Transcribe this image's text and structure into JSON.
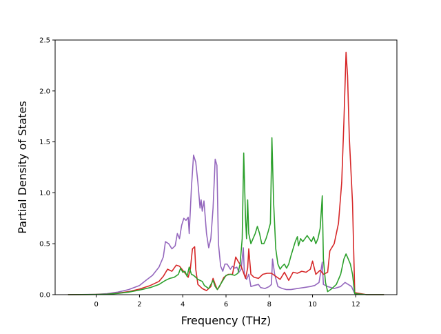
{
  "chart_data": {
    "type": "line",
    "title": "",
    "xlabel": "Frequency (THz)",
    "ylabel": "Partial Density of States",
    "xlim": [
      -1.9,
      13.9
    ],
    "ylim": [
      0,
      2.5
    ],
    "xticks": [
      0,
      2,
      4,
      6,
      8,
      10,
      12
    ],
    "yticks": [
      0.0,
      0.5,
      1.0,
      1.5,
      2.0,
      2.5
    ],
    "xtick_labels": [
      "0",
      "2",
      "4",
      "6",
      "8",
      "10",
      "12"
    ],
    "ytick_labels": [
      "0.0",
      "0.5",
      "1.0",
      "1.5",
      "2.0",
      "2.5"
    ],
    "grid": false,
    "legend": null,
    "series": [
      {
        "color": "#9467bd",
        "points": [
          [
            -1.3,
            0
          ],
          [
            0,
            0.003
          ],
          [
            0.5,
            0.01
          ],
          [
            1.0,
            0.025
          ],
          [
            1.5,
            0.05
          ],
          [
            2.0,
            0.09
          ],
          [
            2.3,
            0.14
          ],
          [
            2.6,
            0.19
          ],
          [
            2.9,
            0.27
          ],
          [
            3.1,
            0.37
          ],
          [
            3.2,
            0.52
          ],
          [
            3.35,
            0.5
          ],
          [
            3.5,
            0.45
          ],
          [
            3.65,
            0.48
          ],
          [
            3.75,
            0.6
          ],
          [
            3.85,
            0.55
          ],
          [
            3.95,
            0.68
          ],
          [
            4.05,
            0.75
          ],
          [
            4.15,
            0.73
          ],
          [
            4.25,
            0.76
          ],
          [
            4.3,
            0.6
          ],
          [
            4.4,
            1.05
          ],
          [
            4.5,
            1.37
          ],
          [
            4.6,
            1.3
          ],
          [
            4.7,
            1.1
          ],
          [
            4.8,
            0.85
          ],
          [
            4.85,
            0.93
          ],
          [
            4.9,
            0.82
          ],
          [
            4.98,
            0.92
          ],
          [
            5.1,
            0.6
          ],
          [
            5.2,
            0.46
          ],
          [
            5.3,
            0.55
          ],
          [
            5.4,
            0.85
          ],
          [
            5.5,
            1.33
          ],
          [
            5.58,
            1.27
          ],
          [
            5.65,
            0.5
          ],
          [
            5.75,
            0.28
          ],
          [
            5.85,
            0.23
          ],
          [
            5.95,
            0.3
          ],
          [
            6.05,
            0.3
          ],
          [
            6.2,
            0.25
          ],
          [
            6.3,
            0.28
          ],
          [
            6.4,
            0.26
          ],
          [
            6.5,
            0.27
          ],
          [
            6.6,
            0.22
          ],
          [
            6.7,
            0.25
          ],
          [
            6.8,
            0.46
          ],
          [
            6.85,
            0.2
          ],
          [
            6.95,
            0.15
          ],
          [
            7.05,
            0.2
          ],
          [
            7.15,
            0.08
          ],
          [
            7.3,
            0.09
          ],
          [
            7.5,
            0.1
          ],
          [
            7.6,
            0.07
          ],
          [
            7.8,
            0.06
          ],
          [
            8.0,
            0.08
          ],
          [
            8.1,
            0.1
          ],
          [
            8.15,
            0.35
          ],
          [
            8.25,
            0.2
          ],
          [
            8.4,
            0.08
          ],
          [
            8.6,
            0.06
          ],
          [
            8.8,
            0.05
          ],
          [
            9.0,
            0.05
          ],
          [
            9.3,
            0.06
          ],
          [
            9.6,
            0.07
          ],
          [
            9.9,
            0.08
          ],
          [
            10.1,
            0.09
          ],
          [
            10.3,
            0.12
          ],
          [
            10.45,
            0.32
          ],
          [
            10.5,
            0.1
          ],
          [
            10.7,
            0.08
          ],
          [
            11.0,
            0.06
          ],
          [
            11.3,
            0.08
          ],
          [
            11.5,
            0.12
          ],
          [
            11.65,
            0.1
          ],
          [
            11.8,
            0.08
          ],
          [
            11.95,
            0.01
          ],
          [
            12.5,
            0
          ],
          [
            13.3,
            0
          ]
        ]
      },
      {
        "color": "#d62728",
        "points": [
          [
            -1.3,
            0
          ],
          [
            0,
            0.002
          ],
          [
            0.5,
            0.005
          ],
          [
            1.0,
            0.015
          ],
          [
            1.5,
            0.03
          ],
          [
            2.0,
            0.055
          ],
          [
            2.5,
            0.09
          ],
          [
            2.9,
            0.13
          ],
          [
            3.1,
            0.18
          ],
          [
            3.3,
            0.25
          ],
          [
            3.5,
            0.23
          ],
          [
            3.7,
            0.29
          ],
          [
            3.85,
            0.28
          ],
          [
            4.0,
            0.24
          ],
          [
            4.15,
            0.2
          ],
          [
            4.25,
            0.17
          ],
          [
            4.35,
            0.25
          ],
          [
            4.45,
            0.45
          ],
          [
            4.55,
            0.47
          ],
          [
            4.6,
            0.25
          ],
          [
            4.7,
            0.1
          ],
          [
            4.9,
            0.06
          ],
          [
            5.1,
            0.04
          ],
          [
            5.3,
            0.08
          ],
          [
            5.4,
            0.16
          ],
          [
            5.5,
            0.1
          ],
          [
            5.6,
            0.05
          ],
          [
            5.7,
            0.08
          ],
          [
            5.9,
            0.17
          ],
          [
            6.1,
            0.2
          ],
          [
            6.3,
            0.2
          ],
          [
            6.45,
            0.37
          ],
          [
            6.55,
            0.33
          ],
          [
            6.7,
            0.28
          ],
          [
            6.9,
            0.16
          ],
          [
            7.0,
            0.26
          ],
          [
            7.05,
            0.45
          ],
          [
            7.15,
            0.2
          ],
          [
            7.3,
            0.17
          ],
          [
            7.5,
            0.16
          ],
          [
            7.7,
            0.2
          ],
          [
            7.9,
            0.21
          ],
          [
            8.1,
            0.21
          ],
          [
            8.3,
            0.18
          ],
          [
            8.5,
            0.15
          ],
          [
            8.7,
            0.22
          ],
          [
            8.9,
            0.14
          ],
          [
            9.1,
            0.22
          ],
          [
            9.3,
            0.21
          ],
          [
            9.5,
            0.23
          ],
          [
            9.7,
            0.22
          ],
          [
            9.9,
            0.25
          ],
          [
            10.0,
            0.33
          ],
          [
            10.15,
            0.2
          ],
          [
            10.35,
            0.24
          ],
          [
            10.5,
            0.2
          ],
          [
            10.7,
            0.22
          ],
          [
            10.8,
            0.43
          ],
          [
            11.0,
            0.5
          ],
          [
            11.2,
            0.7
          ],
          [
            11.35,
            1.1
          ],
          [
            11.45,
            1.7
          ],
          [
            11.55,
            2.38
          ],
          [
            11.62,
            2.15
          ],
          [
            11.7,
            1.55
          ],
          [
            11.85,
            0.9
          ],
          [
            11.95,
            0.02
          ],
          [
            12.5,
            0
          ],
          [
            13.3,
            0
          ]
        ]
      },
      {
        "color": "#2ca02c",
        "points": [
          [
            -1.3,
            0
          ],
          [
            0,
            0.002
          ],
          [
            0.5,
            0.005
          ],
          [
            1.0,
            0.012
          ],
          [
            1.5,
            0.025
          ],
          [
            2.0,
            0.045
          ],
          [
            2.5,
            0.07
          ],
          [
            2.9,
            0.1
          ],
          [
            3.2,
            0.14
          ],
          [
            3.4,
            0.16
          ],
          [
            3.6,
            0.17
          ],
          [
            3.8,
            0.2
          ],
          [
            3.9,
            0.26
          ],
          [
            4.0,
            0.22
          ],
          [
            4.1,
            0.23
          ],
          [
            4.2,
            0.18
          ],
          [
            4.3,
            0.27
          ],
          [
            4.4,
            0.2
          ],
          [
            4.5,
            0.19
          ],
          [
            4.6,
            0.17
          ],
          [
            4.7,
            0.15
          ],
          [
            4.8,
            0.14
          ],
          [
            4.9,
            0.13
          ],
          [
            5.0,
            0.09
          ],
          [
            5.2,
            0.06
          ],
          [
            5.4,
            0.14
          ],
          [
            5.5,
            0.08
          ],
          [
            5.6,
            0.05
          ],
          [
            5.8,
            0.12
          ],
          [
            6.0,
            0.19
          ],
          [
            6.2,
            0.2
          ],
          [
            6.4,
            0.19
          ],
          [
            6.55,
            0.21
          ],
          [
            6.65,
            0.3
          ],
          [
            6.75,
            0.55
          ],
          [
            6.82,
            1.39
          ],
          [
            6.9,
            0.75
          ],
          [
            6.95,
            0.55
          ],
          [
            7.0,
            0.93
          ],
          [
            7.05,
            0.6
          ],
          [
            7.15,
            0.5
          ],
          [
            7.25,
            0.55
          ],
          [
            7.35,
            0.6
          ],
          [
            7.45,
            0.67
          ],
          [
            7.55,
            0.6
          ],
          [
            7.65,
            0.5
          ],
          [
            7.75,
            0.5
          ],
          [
            7.85,
            0.55
          ],
          [
            7.95,
            0.62
          ],
          [
            8.05,
            0.7
          ],
          [
            8.12,
            1.54
          ],
          [
            8.2,
            0.9
          ],
          [
            8.3,
            0.45
          ],
          [
            8.4,
            0.3
          ],
          [
            8.5,
            0.25
          ],
          [
            8.6,
            0.28
          ],
          [
            8.7,
            0.3
          ],
          [
            8.8,
            0.26
          ],
          [
            8.9,
            0.3
          ],
          [
            9.0,
            0.38
          ],
          [
            9.1,
            0.45
          ],
          [
            9.2,
            0.52
          ],
          [
            9.3,
            0.57
          ],
          [
            9.35,
            0.48
          ],
          [
            9.45,
            0.55
          ],
          [
            9.55,
            0.52
          ],
          [
            9.65,
            0.55
          ],
          [
            9.75,
            0.58
          ],
          [
            9.85,
            0.55
          ],
          [
            9.95,
            0.52
          ],
          [
            10.05,
            0.57
          ],
          [
            10.15,
            0.5
          ],
          [
            10.25,
            0.55
          ],
          [
            10.35,
            0.65
          ],
          [
            10.45,
            0.97
          ],
          [
            10.5,
            0.35
          ],
          [
            10.6,
            0.12
          ],
          [
            10.7,
            0.03
          ],
          [
            10.9,
            0.06
          ],
          [
            11.1,
            0.1
          ],
          [
            11.3,
            0.2
          ],
          [
            11.45,
            0.35
          ],
          [
            11.55,
            0.4
          ],
          [
            11.65,
            0.35
          ],
          [
            11.75,
            0.3
          ],
          [
            11.85,
            0.2
          ],
          [
            11.95,
            0.01
          ],
          [
            12.5,
            0
          ],
          [
            13.3,
            0
          ]
        ]
      }
    ]
  }
}
